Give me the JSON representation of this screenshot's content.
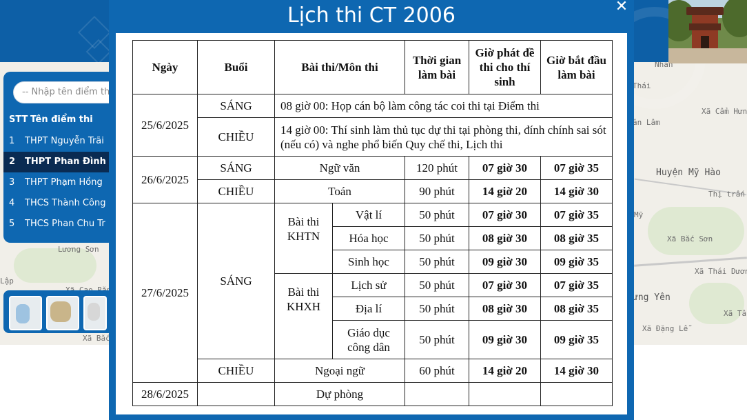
{
  "map": {
    "labels": [
      "Lương Sơn",
      "Lập",
      "Xã Cao Răng",
      "Xã Bắc",
      "Thái",
      "Xã Cẩm Hưng",
      "ăn Lâm",
      "Huyện Mỹ Hào",
      "Thị trấn Kh",
      "Mỹ",
      "Xã Bắc Sơn",
      "Xã Thái Dương",
      "ưng Yên",
      "Xã Tân",
      "Xã Đặng Lễ",
      "Nhân"
    ]
  },
  "sidebar": {
    "search_placeholder": "-- Nhập tên điểm thi",
    "columns": [
      "STT",
      "Tên điểm thi"
    ],
    "rows": [
      {
        "no": "1",
        "name": "THPT Nguyễn Trãi"
      },
      {
        "no": "2",
        "name": "THPT Phan Đình"
      },
      {
        "no": "3",
        "name": "THPT Phạm Hồng"
      },
      {
        "no": "4",
        "name": "THCS Thành Công"
      },
      {
        "no": "5",
        "name": "THCS Phan Chu Tr"
      }
    ],
    "active_index": 1
  },
  "modal": {
    "title": "Lịch thi CT 2006",
    "close": "✕"
  },
  "schedule": {
    "headers": [
      "Ngày",
      "Buổi",
      "Bài thi/Môn thi",
      "Thời gian làm bài",
      "Giờ phát đề thi cho thí sinh",
      "Giờ bắt đầu làm bài"
    ],
    "d1": {
      "date": "25/6/2025",
      "s1": "SÁNG",
      "s1_note": "08 giờ 00: Họp cán bộ làm công tác coi thi tại Điểm thi",
      "s2": "CHIỀU",
      "s2_note": "14 giờ 00: Thí sinh làm thủ tục dự thi tại phòng thi, đính chính sai sót (nếu có) và nghe phổ biến Quy chế thi, Lịch thi"
    },
    "d2": {
      "date": "26/6/2025",
      "r1": {
        "session": "SÁNG",
        "subject": "Ngữ văn",
        "duration": "120 phút",
        "deliver": "07 giờ 30",
        "start": "07 giờ 35"
      },
      "r2": {
        "session": "CHIỀU",
        "subject": "Toán",
        "duration": "90 phút",
        "deliver": "14 giờ 20",
        "start": "14 giờ 30"
      }
    },
    "d3": {
      "date": "27/6/2025",
      "morning": "SÁNG",
      "group1": "Bài thi KHTN",
      "group2": "Bài thi KHXH",
      "rows": [
        {
          "subject": "Vật lí",
          "duration": "50 phút",
          "deliver": "07 giờ 30",
          "start": "07 giờ 35"
        },
        {
          "subject": "Hóa học",
          "duration": "50 phút",
          "deliver": "08 giờ 30",
          "start": "08 giờ 35"
        },
        {
          "subject": "Sinh học",
          "duration": "50 phút",
          "deliver": "09 giờ 30",
          "start": "09 giờ 35"
        },
        {
          "subject": "Lịch sử",
          "duration": "50 phút",
          "deliver": "07 giờ 30",
          "start": "07 giờ 35"
        },
        {
          "subject": "Địa lí",
          "duration": "50 phút",
          "deliver": "08 giờ 30",
          "start": "08 giờ 35"
        },
        {
          "subject": "Giáo dục công dân",
          "duration": "50 phút",
          "deliver": "09 giờ 30",
          "start": "09 giờ 35"
        }
      ],
      "afternoon": {
        "session": "CHIỀU",
        "subject": "Ngoại ngữ",
        "duration": "60 phút",
        "deliver": "14 giờ 20",
        "start": "14 giờ 30"
      }
    },
    "d4": {
      "date": "28/6/2025",
      "subject": "Dự phòng"
    }
  }
}
